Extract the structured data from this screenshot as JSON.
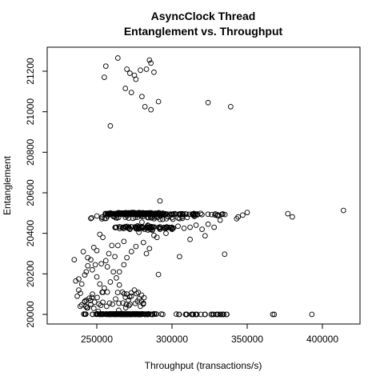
{
  "chart_data": {
    "type": "scatter",
    "title": [
      "AsyncClock Thread",
      "Entanglement vs. Throughput"
    ],
    "xlabel": "Throughput (transactions/s)",
    "ylabel": "Entanglement",
    "x_ticks": [
      250000,
      300000,
      350000,
      400000
    ],
    "x_tick_labels": [
      "250000",
      "300000",
      "350000",
      "400000"
    ],
    "y_ticks": [
      20000,
      20200,
      20400,
      20600,
      20800,
      21000,
      21200
    ],
    "y_tick_labels": [
      "20000",
      "20200",
      "20400",
      "20600",
      "20800",
      "21000",
      "21200"
    ],
    "xlim": [
      220000,
      418000
    ],
    "ylim": [
      19985,
      21280
    ],
    "grid": false,
    "legend": "none",
    "marker": "open-circle",
    "points": [
      [
        264000,
        21265
      ],
      [
        256000,
        21225
      ],
      [
        283000,
        21210
      ],
      [
        288000,
        21195
      ],
      [
        279000,
        21205
      ],
      [
        275000,
        21180
      ],
      [
        255000,
        21170
      ],
      [
        276000,
        21160
      ],
      [
        285000,
        21255
      ],
      [
        286000,
        21240
      ],
      [
        270000,
        21210
      ],
      [
        272000,
        21190
      ],
      [
        269000,
        21115
      ],
      [
        273000,
        21095
      ],
      [
        280000,
        21075
      ],
      [
        291000,
        21050
      ],
      [
        282000,
        21025
      ],
      [
        286000,
        21010
      ],
      [
        259000,
        20930
      ],
      [
        324000,
        21045
      ],
      [
        339000,
        21025
      ],
      [
        393000,
        20000
      ],
      [
        368000,
        20000
      ],
      [
        367000,
        20000
      ],
      [
        414000,
        20513
      ],
      [
        377000,
        20497
      ],
      [
        380000,
        20481
      ],
      [
        350000,
        20503
      ],
      [
        347000,
        20490
      ],
      [
        344000,
        20481
      ],
      [
        343000,
        20472
      ],
      [
        335000,
        20297
      ],
      [
        330000,
        20488
      ],
      [
        322000,
        20388
      ],
      [
        312000,
        20370
      ],
      [
        305000,
        20285
      ],
      [
        292000,
        20560
      ],
      [
        291000,
        20197
      ],
      [
        290000,
        20380
      ],
      [
        287000,
        20415
      ],
      [
        285000,
        20325
      ],
      [
        283000,
        20300
      ],
      [
        281000,
        20355
      ],
      [
        278000,
        20405
      ],
      [
        276000,
        20335
      ],
      [
        273000,
        20310
      ],
      [
        270000,
        20280
      ],
      [
        268000,
        20245
      ],
      [
        265000,
        20210
      ],
      [
        262000,
        20285
      ],
      [
        260000,
        20340
      ],
      [
        258000,
        20300
      ],
      [
        256000,
        20265
      ],
      [
        254000,
        20380
      ],
      [
        252000,
        20395
      ],
      [
        250000,
        20315
      ],
      [
        248000,
        20330
      ],
      [
        246000,
        20270
      ],
      [
        244000,
        20240
      ],
      [
        242000,
        20195
      ],
      [
        240000,
        20150
      ],
      [
        238000,
        20120
      ],
      [
        237000,
        20090
      ],
      [
        236000,
        20165
      ],
      [
        241000,
        20310
      ],
      [
        244000,
        20280
      ],
      [
        247000,
        20220
      ],
      [
        250000,
        20185
      ],
      [
        252000,
        20150
      ],
      [
        255000,
        20130
      ],
      [
        257000,
        20110
      ],
      [
        259000,
        20160
      ],
      [
        261000,
        20210
      ],
      [
        263000,
        20180
      ],
      [
        265000,
        20145
      ],
      [
        267000,
        20110
      ],
      [
        269000,
        20085
      ],
      [
        271000,
        20070
      ],
      [
        273000,
        20090
      ],
      [
        275000,
        20120
      ],
      [
        277000,
        20065
      ],
      [
        279000,
        20040
      ],
      [
        281000,
        20055
      ],
      [
        246000,
        20050
      ],
      [
        248000,
        20030
      ],
      [
        251000,
        20015
      ],
      [
        254000,
        20060
      ],
      [
        239000,
        20040
      ],
      [
        242000,
        20065
      ],
      [
        245000,
        20080
      ],
      [
        235000,
        20270
      ],
      [
        238000,
        20175
      ],
      [
        243000,
        20210
      ],
      [
        249000,
        20245
      ],
      [
        253000,
        20250
      ],
      [
        257000,
        20235
      ],
      [
        264000,
        20340
      ],
      [
        268000,
        20360
      ],
      [
        272000,
        20420
      ],
      [
        276000,
        20430
      ],
      [
        280000,
        20455
      ],
      [
        284000,
        20440
      ],
      [
        288000,
        20390
      ],
      [
        292000,
        20420
      ],
      [
        296000,
        20400
      ],
      [
        300000,
        20420
      ],
      [
        304000,
        20435
      ],
      [
        308000,
        20425
      ],
      [
        312000,
        20430
      ],
      [
        316000,
        20440
      ],
      [
        320000,
        20420
      ],
      [
        324000,
        20445
      ],
      [
        328000,
        20430
      ],
      [
        332000,
        20465
      ]
    ]
  }
}
